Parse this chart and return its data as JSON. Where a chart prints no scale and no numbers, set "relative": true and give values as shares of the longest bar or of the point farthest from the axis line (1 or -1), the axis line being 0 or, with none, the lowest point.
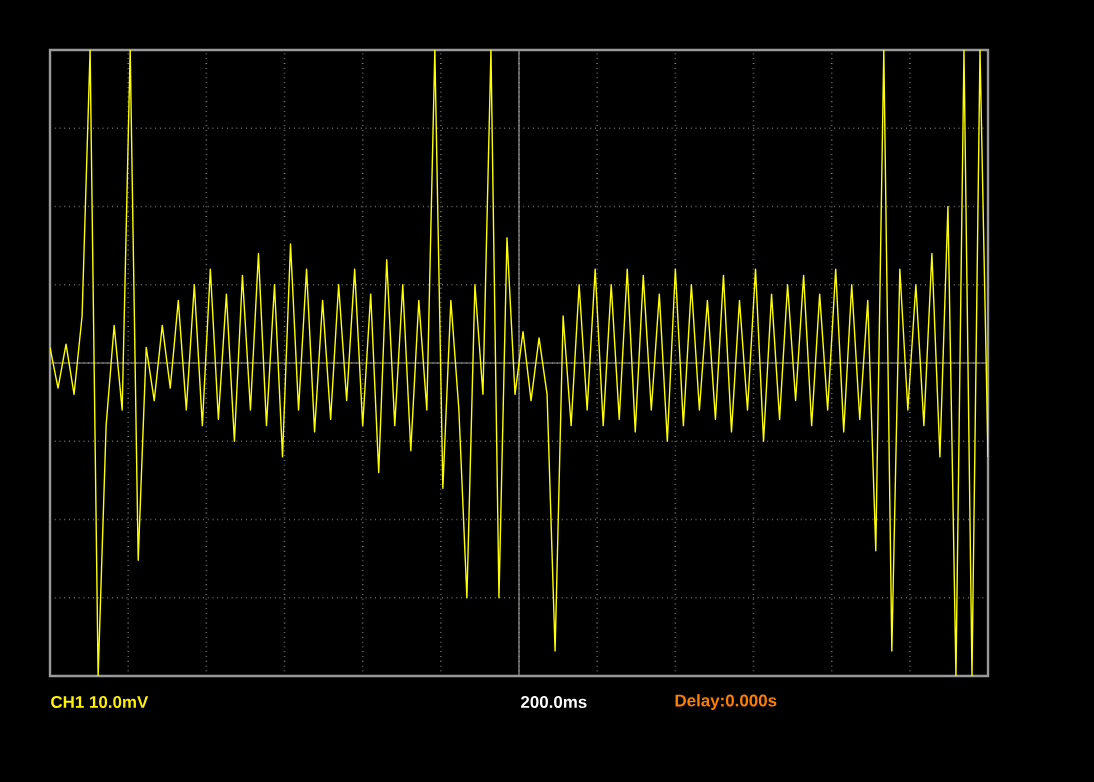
{
  "chart_data": {
    "type": "line",
    "relative": true,
    "grid": true,
    "categories": [
      null,
      null,
      null,
      null,
      null,
      null,
      null,
      null,
      null,
      null,
      null,
      null,
      null,
      null,
      null,
      null,
      null,
      null,
      null,
      null,
      null,
      null,
      null,
      null,
      null,
      null,
      null,
      null,
      null,
      null,
      null,
      null,
      null,
      null,
      null,
      null,
      null,
      null,
      null,
      null,
      null,
      null,
      null,
      null,
      null,
      null,
      null,
      null,
      null,
      null,
      null,
      null,
      null,
      null,
      null,
      null,
      null,
      null,
      null,
      null,
      null,
      null,
      null,
      null,
      null,
      null,
      null,
      null,
      null,
      null,
      null,
      null,
      null,
      null,
      null,
      null,
      null,
      null,
      null,
      null,
      null,
      null,
      null,
      null,
      null,
      null,
      null,
      null,
      null,
      null,
      null,
      null,
      null,
      null,
      null,
      null,
      null,
      null,
      null,
      null,
      null,
      null,
      null,
      null,
      null,
      null,
      null,
      null,
      null,
      null,
      null,
      null,
      null,
      null,
      null,
      null,
      null,
      null
    ],
    "series": [
      {
        "color": "#ffff00",
        "values": [
          0.05,
          -0.08,
          0.06,
          -0.1,
          0.15,
          1,
          -1,
          -0.2,
          0.12,
          -0.15,
          1,
          -0.63,
          0.05,
          -0.12,
          0.12,
          -0.08,
          0.2,
          -0.15,
          0.25,
          -0.2,
          0.3,
          -0.18,
          0.22,
          -0.25,
          0.28,
          -0.15,
          0.35,
          -0.2,
          0.25,
          -0.3,
          0.38,
          -0.15,
          0.3,
          -0.22,
          0.2,
          -0.18,
          0.25,
          -0.12,
          0.3,
          -0.2,
          0.22,
          -0.35,
          0.33,
          -0.2,
          0.25,
          -0.28,
          0.2,
          -0.15,
          1,
          -0.4,
          0.2,
          -0.15,
          -0.75,
          0.25,
          -0.1,
          1,
          -0.75,
          0.4,
          -0.1,
          0.1,
          -0.12,
          0.08,
          -0.1,
          -0.92,
          0.15,
          -0.2,
          0.25,
          -0.15,
          0.3,
          -0.2,
          0.25,
          -0.18,
          0.3,
          -0.22,
          0.28,
          -0.15,
          0.22,
          -0.25,
          0.3,
          -0.2,
          0.25,
          -0.15,
          0.2,
          -0.18,
          0.28,
          -0.22,
          0.2,
          -0.15,
          0.3,
          -0.25,
          0.22,
          -0.18,
          0.25,
          -0.12,
          0.28,
          -0.2,
          0.22,
          -0.15,
          0.3,
          -0.22,
          0.25,
          -0.18,
          0.2,
          -0.6,
          1,
          -0.92,
          0.3,
          -0.15,
          0.25,
          -0.2,
          0.35,
          -0.3,
          0.5,
          -1,
          1,
          -1,
          1,
          -0.3
        ]
      }
    ],
    "annotations": [
      "CH1 10.0mV",
      "200.0ms",
      "Delay:0.000s"
    ]
  }
}
